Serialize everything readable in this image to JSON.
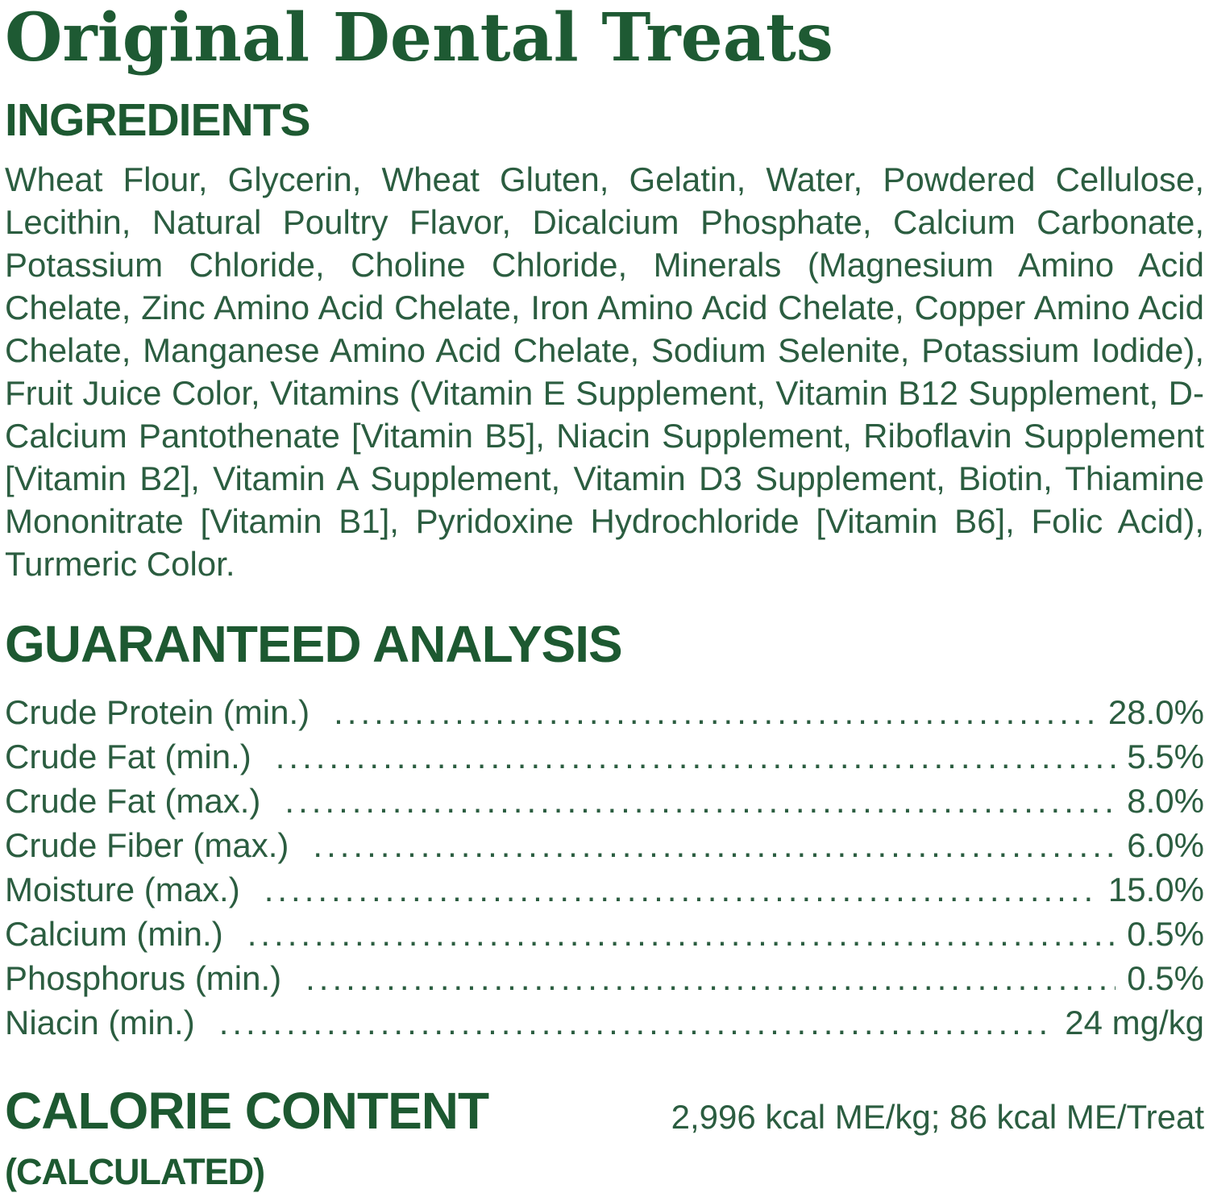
{
  "colors": {
    "title_green": "#1e5a33",
    "heading_green": "#1d5931",
    "body_green": "#2b5d40",
    "background": "#ffffff"
  },
  "title": "Original Dental Treats",
  "ingredients": {
    "heading": "INGREDIENTS",
    "text": "Wheat Flour, Glycerin, Wheat Gluten, Gelatin, Water, Powdered Cellulose, Lecithin, Natural Poultry Flavor, Dicalcium Phosphate, Calcium Carbonate, Potassium Chloride, Choline Chloride, Minerals (Magnesium Amino Acid Chelate, Zinc Amino Acid Chelate, Iron Amino Acid Chelate, Copper Amino Acid Chelate, Manganese Amino Acid Chelate, Sodium Selenite, Potassium Iodide), Fruit Juice Color, Vitamins (Vitamin E Supplement, Vitamin B12 Supplement, D-Calcium Pantothenate [Vitamin B5], Niacin Supplement, Riboflavin Supplement [Vitamin B2], Vitamin A Supplement, Vitamin D3 Supplement, Biotin, Thiamine Mononitrate [Vitamin B1], Pyridoxine Hydrochloride [Vitamin B6], Folic Acid), Turmeric Color."
  },
  "guaranteed_analysis": {
    "heading": "GUARANTEED ANALYSIS",
    "rows": [
      {
        "label": "Crude Protein (min.)",
        "value": "28.0%"
      },
      {
        "label": "Crude Fat (min.)",
        "value": "5.5%"
      },
      {
        "label": "Crude Fat (max.)",
        "value": "8.0%"
      },
      {
        "label": "Crude Fiber (max.)",
        "value": "6.0%"
      },
      {
        "label": "Moisture (max.)",
        "value": "15.0%"
      },
      {
        "label": "Calcium (min.)",
        "value": "0.5%"
      },
      {
        "label": "Phosphorus (min.)",
        "value": "0.5%"
      },
      {
        "label": "Niacin (min.)",
        "value": "24 mg/kg"
      }
    ]
  },
  "calorie_content": {
    "heading_line1": "CALORIE CONTENT",
    "heading_line2": "(CALCULATED)",
    "value": "2,996 kcal ME/kg; 86 kcal ME/Treat"
  }
}
